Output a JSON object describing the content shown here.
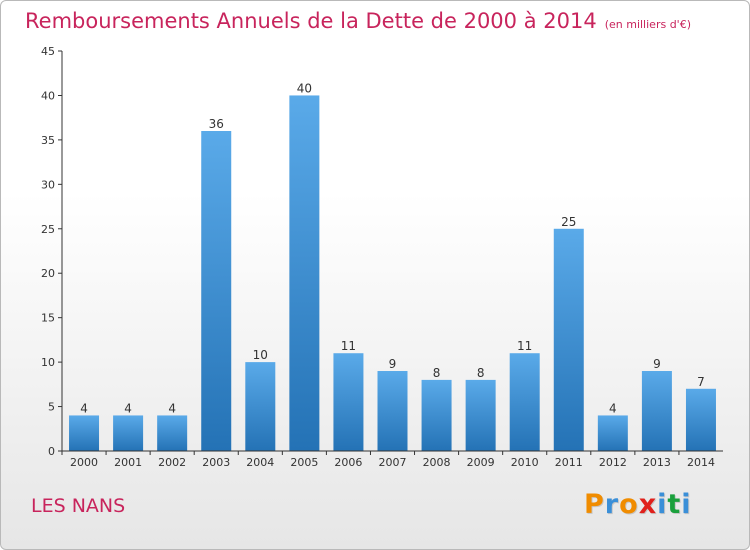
{
  "header": {
    "title": "Remboursements Annuels de la Dette de 2000 à 2014",
    "subtitle": "(en milliers d'€)"
  },
  "footer": {
    "place": "LES NANS",
    "logo": "Proxiti",
    "logo_colors": [
      "#f08c00",
      "#3a8fd8",
      "#f08c00",
      "#e0201b",
      "#3a8fd8",
      "#1aa03c",
      "#3a8fd8"
    ]
  },
  "colors": {
    "title": "#c8245c",
    "bar_top": "#5aaae9",
    "bar_bottom": "#2472b5",
    "axis": "#333333"
  },
  "chart_data": {
    "type": "bar",
    "categories": [
      "2000",
      "2001",
      "2002",
      "2003",
      "2004",
      "2005",
      "2006",
      "2007",
      "2008",
      "2009",
      "2010",
      "2011",
      "2012",
      "2013",
      "2014"
    ],
    "values": [
      4,
      4,
      4,
      36,
      10,
      40,
      11,
      9,
      8,
      8,
      11,
      25,
      4,
      9,
      7
    ],
    "ylim": [
      0,
      45
    ],
    "yticks": [
      0,
      5,
      10,
      15,
      20,
      25,
      30,
      35,
      40,
      45
    ],
    "grid": false,
    "legend": "none",
    "xlabel": "",
    "ylabel": ""
  }
}
